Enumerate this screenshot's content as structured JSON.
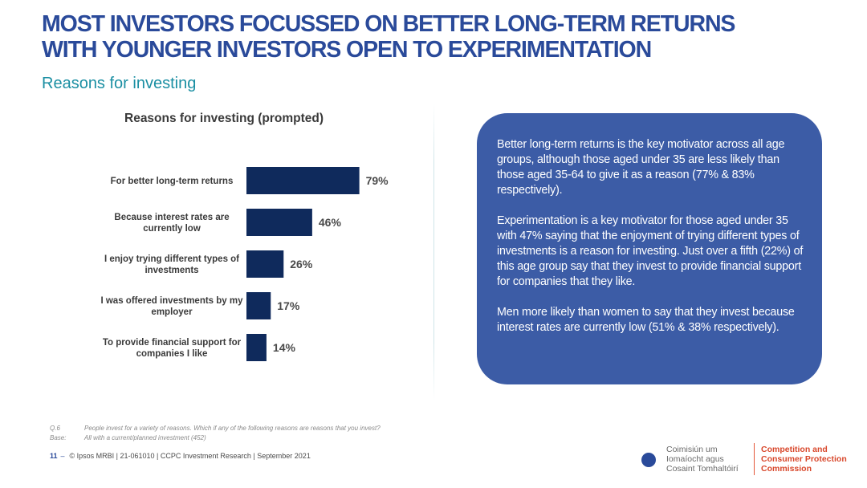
{
  "header": {
    "title_line1": "MOST INVESTORS FOCUSSED ON BETTER LONG-TERM RETURNS",
    "title_line2": "WITH YOUNGER INVESTORS OPEN TO EXPERIMENTATION",
    "subtitle": "Reasons for investing"
  },
  "chart_data": {
    "type": "bar",
    "orientation": "horizontal",
    "title": "Reasons for investing (prompted)",
    "categories": [
      [
        "For better long-term returns"
      ],
      [
        "Because interest rates are",
        "currently low"
      ],
      [
        "I enjoy trying different types of",
        "investments"
      ],
      [
        "I was offered investments by my",
        "employer"
      ],
      [
        "To provide financial support for",
        "companies I like"
      ]
    ],
    "values": [
      79,
      46,
      26,
      17,
      14
    ],
    "value_labels": [
      "79%",
      "46%",
      "26%",
      "17%",
      "14%"
    ],
    "xlim": [
      0,
      100
    ],
    "bar_color": "#0f2a5c",
    "grid": false,
    "legend": "none"
  },
  "callout": {
    "paragraphs": [
      "Better long-term returns is the key motivator across all age groups, although those aged under 35 are less likely than those aged 35-64 to give it as a reason (77% & 83% respectively).",
      "Experimentation is a key motivator for those aged under 35 with 47% saying that the enjoyment of trying different types of investments is a reason for investing. Just over a fifth (22%) of this age group say that they invest to provide financial support for companies that they like.",
      "Men more likely than women to say that they invest because interest rates are currently low (51% & 38% respectively)."
    ],
    "background": "#3c5ca6"
  },
  "footnote": {
    "q_label": "Q.6",
    "q_text": "People invest for a variety of reasons. Which if any of the following reasons are reasons that you invest?",
    "base_label": "Base:",
    "base_text": "All with a current/planned investment (452)"
  },
  "footer": {
    "page_number": "11",
    "dash": "–",
    "text": "© Ipsos MRBI | 21-061010 | CCPC Investment Research | September 2021"
  },
  "logo": {
    "irish_lines": [
      "Coimisiún um",
      "Iomaíocht agus",
      "Cosaint Tomhaltóirí"
    ],
    "english_lines": [
      "Competition and",
      "Consumer Protection",
      "Commission"
    ]
  },
  "colors": {
    "title": "#2a4a9a",
    "subtitle": "#1b8fa3",
    "logo_red": "#d8472b",
    "logo_blue": "#2a4a9a"
  }
}
